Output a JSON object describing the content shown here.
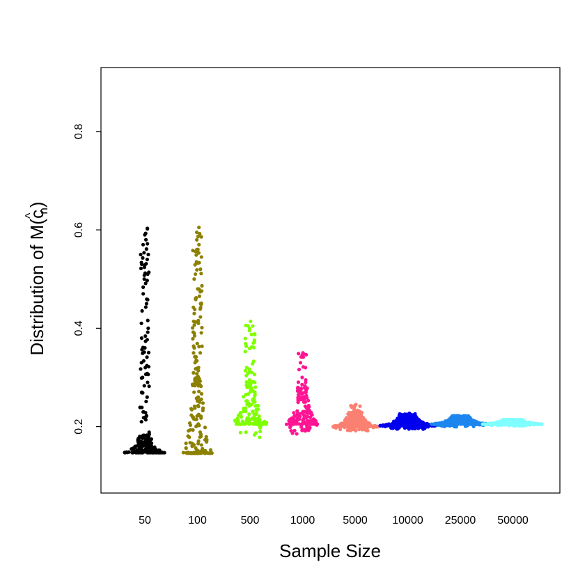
{
  "chart_data": {
    "type": "scatter",
    "subtype": "beeswarm",
    "xlabel": "Sample Size",
    "ylabel": {
      "prefix": "Distribution of M(",
      "base": "c",
      "hat": "^",
      "subscript": "n",
      "suffix": ")"
    },
    "ylim": [
      0.065,
      0.93
    ],
    "yticks": [
      "0.2",
      "0.4",
      "0.6",
      "0.8"
    ],
    "categories": [
      "50",
      "100",
      "500",
      "1000",
      "5000",
      "10000",
      "25000",
      "50000"
    ],
    "grid": false,
    "legend": "none",
    "series": [
      {
        "category": "50",
        "color": "#000000",
        "min": 0.147,
        "max": 0.603,
        "notable_values": [
          0.603,
          0.59,
          0.58,
          0.57,
          0.55,
          0.53,
          0.51,
          0.5,
          0.497,
          0.47,
          0.45,
          0.41,
          0.4,
          0.38,
          0.36,
          0.33,
          0.32,
          0.3,
          0.29,
          0.27,
          0.26,
          0.23,
          0.22,
          0.21
        ]
      },
      {
        "category": "100",
        "color": "#8B8000",
        "min": 0.146,
        "max": 0.605,
        "notable_values": [
          0.605,
          0.595,
          0.57,
          0.56,
          0.52,
          0.5,
          0.48,
          0.46,
          0.45,
          0.43,
          0.41,
          0.36,
          0.35,
          0.33,
          0.32,
          0.3,
          0.29,
          0.27,
          0.26
        ]
      },
      {
        "category": "500",
        "color": "#7FFF00",
        "min": 0.15,
        "max": 0.414,
        "notable_values": [
          0.414,
          0.405,
          0.37,
          0.32,
          0.31,
          0.295,
          0.29,
          0.28
        ]
      },
      {
        "category": "1000",
        "color": "#FF1493",
        "min": 0.16,
        "max": 0.35,
        "notable_values": [
          0.35,
          0.33,
          0.32,
          0.3,
          0.29,
          0.27,
          0.25
        ]
      },
      {
        "category": "5000",
        "color": "#FA8072",
        "min": 0.183,
        "max": 0.245,
        "notable_values": [
          0.245,
          0.238,
          0.233,
          0.228
        ]
      },
      {
        "category": "10000",
        "color": "#0000EE",
        "min": 0.188,
        "max": 0.227,
        "notable_values": [
          0.227,
          0.222
        ]
      },
      {
        "category": "25000",
        "color": "#1C86EE",
        "min": 0.193,
        "max": 0.222,
        "notable_values": [
          0.222,
          0.219
        ]
      },
      {
        "category": "50000",
        "color": "#7FFFFF",
        "min": 0.198,
        "max": 0.214,
        "notable_values": [
          0.214,
          0.212
        ]
      }
    ]
  }
}
